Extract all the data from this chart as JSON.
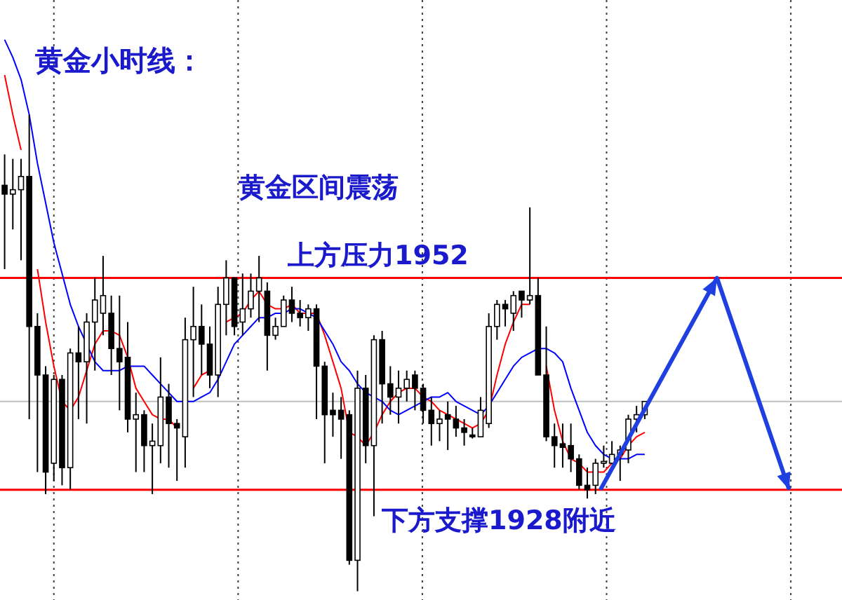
{
  "chart_data": {
    "type": "candlestick",
    "title": "黄金小时线：",
    "annotations": [
      "黄金区间震荡"
    ],
    "categories": [
      null,
      null,
      null,
      null,
      null,
      null,
      null,
      null,
      null,
      null,
      null,
      null,
      null,
      null,
      null,
      null,
      null,
      null,
      null,
      null,
      null,
      null,
      null,
      null,
      null,
      null,
      null,
      null,
      null,
      null,
      null,
      null,
      null,
      null,
      null,
      null,
      null,
      null,
      null,
      null,
      null,
      null,
      null,
      null,
      null,
      null,
      null,
      null,
      null,
      null,
      null,
      null,
      null,
      null,
      null,
      null,
      null,
      null,
      null,
      null,
      null,
      null,
      null,
      null,
      null,
      null,
      null,
      null,
      null,
      null,
      null,
      null,
      null,
      null,
      null,
      null,
      null,
      null,
      null
    ],
    "ohlc": [
      [
        1962.5,
        1966,
        1953,
        1961.5
      ],
      [
        1961.5,
        1965.5,
        1957.5,
        1962
      ],
      [
        1962,
        1965.5,
        1954,
        1963.5
      ],
      [
        1963.5,
        1970.5,
        1936,
        1946.5
      ],
      [
        1946.5,
        1948,
        1930,
        1941
      ],
      [
        1941,
        1942,
        1927.5,
        1930
      ],
      [
        1931,
        1941,
        1929,
        1940.5
      ],
      [
        1940.5,
        1941,
        1928.5,
        1930.5
      ],
      [
        1930.5,
        1944,
        1928,
        1943.5
      ],
      [
        1943.5,
        1946.5,
        1936,
        1942.5
      ],
      [
        1942.5,
        1948,
        1935.5,
        1947
      ],
      [
        1947,
        1952,
        1941.5,
        1949.5
      ],
      [
        1948,
        1954.5,
        1945.5,
        1950
      ],
      [
        1948,
        1950,
        1941,
        1944
      ],
      [
        1944,
        1950,
        1937,
        1942.5
      ],
      [
        1943,
        1947,
        1934.5,
        1936
      ],
      [
        1936,
        1939,
        1930,
        1936.5
      ],
      [
        1936.5,
        1937,
        1930,
        1933
      ],
      [
        1933,
        1935.5,
        1927.5,
        1933.5
      ],
      [
        1933,
        1943,
        1931,
        1938.5
      ],
      [
        1938.5,
        1940,
        1930.5,
        1935.5
      ],
      [
        1935.5,
        1936,
        1929,
        1935
      ],
      [
        1934,
        1947.5,
        1930.5,
        1945
      ],
      [
        1945,
        1951,
        1938.5,
        1946.5
      ],
      [
        1946.5,
        1949,
        1941,
        1944.5
      ],
      [
        1944.5,
        1946.5,
        1939.5,
        1941
      ],
      [
        1941,
        1951,
        1938.5,
        1949
      ],
      [
        1949,
        1954,
        1945.5,
        1952
      ],
      [
        1952,
        1952,
        1945.5,
        1946.5
      ],
      [
        1947,
        1952.5,
        1945.5,
        1948.5
      ],
      [
        1948.5,
        1952.5,
        1947.5,
        1950.5
      ],
      [
        1950.5,
        1954.5,
        1947,
        1952
      ],
      [
        1950.5,
        1951.5,
        1941.5,
        1945.5
      ],
      [
        1945.5,
        1947.5,
        1945,
        1946.5
      ],
      [
        1946.5,
        1950,
        1946.5,
        1949.5
      ],
      [
        1949.5,
        1951,
        1947,
        1948
      ],
      [
        1948,
        1949.5,
        1946.5,
        1947.5
      ],
      [
        1947.5,
        1949,
        1946,
        1948.5
      ],
      [
        1948.5,
        1949,
        1936,
        1942
      ],
      [
        1942,
        1942.5,
        1931,
        1936.5
      ],
      [
        1937,
        1939,
        1934,
        1936.5
      ],
      [
        1937,
        1938.5,
        1931.5,
        1936
      ],
      [
        1936.5,
        1937,
        1919.5,
        1920
      ],
      [
        1920,
        1941.5,
        1916.5,
        1939.5
      ],
      [
        1939.5,
        1941,
        1931,
        1933
      ],
      [
        1933,
        1945.5,
        1925,
        1945
      ],
      [
        1945,
        1946,
        1935.5,
        1940
      ],
      [
        1940,
        1942,
        1936.5,
        1938.5
      ],
      [
        1938.5,
        1941.5,
        1935.5,
        1939.5
      ],
      [
        1939.5,
        1941.5,
        1938,
        1940.5
      ],
      [
        1941,
        1941.5,
        1937,
        1939.5
      ],
      [
        1939.5,
        1940,
        1935.5,
        1937
      ],
      [
        1937,
        1938.5,
        1933,
        1935.5
      ],
      [
        1935.5,
        1937,
        1933.5,
        1936
      ],
      [
        1936.5,
        1938,
        1932.5,
        1936
      ],
      [
        1936,
        1937.5,
        1934,
        1935
      ],
      [
        1935,
        1936,
        1933,
        1934.5
      ],
      [
        1934.2,
        1935,
        1933.8,
        1934
      ],
      [
        1934,
        1938.5,
        1934,
        1937
      ],
      [
        1935.5,
        1948,
        1935,
        1946.5
      ],
      [
        1946.5,
        1949.5,
        1945,
        1949
      ],
      [
        1949,
        1949.5,
        1946.5,
        1948.5
      ],
      [
        1948,
        1950.5,
        1946,
        1950
      ],
      [
        1950.5,
        1950.5,
        1947.5,
        1949.5
      ],
      [
        1949.5,
        1960,
        1949,
        1950
      ],
      [
        1950,
        1952,
        1941,
        1941
      ],
      [
        1941,
        1946.5,
        1933.5,
        1934
      ],
      [
        1934,
        1935.5,
        1930.5,
        1933
      ],
      [
        1933.2,
        1935.5,
        1930.5,
        1932.8
      ],
      [
        1933,
        1935.5,
        1930,
        1931.5
      ],
      [
        1931.5,
        1932,
        1928,
        1928.5
      ],
      [
        1928.5,
        1930.5,
        1927,
        1928
      ],
      [
        1928.5,
        1931.5,
        1927.5,
        1931
      ],
      [
        1931,
        1933,
        1930.5,
        1931.2
      ],
      [
        1931,
        1933.5,
        1931,
        1932
      ],
      [
        1932,
        1933,
        1929,
        1932.5
      ],
      [
        1932.5,
        1936.5,
        1931,
        1936
      ],
      [
        1936,
        1937.5,
        1934.5,
        1936.5
      ],
      [
        1936.5,
        1938,
        1936,
        1938
      ]
    ],
    "series": [
      {
        "type": "line",
        "color": "#ff0000",
        "values": [
          1975,
          1970.5,
          1966.5,
          null,
          1953,
          1947,
          1942,
          1938,
          1937,
          1938.5,
          1941.5,
          1944.5,
          1946,
          1946,
          1945.5,
          1943,
          1939.5,
          1938,
          1936.5,
          1936,
          1936,
          1935,
          null,
          1939.5,
          1941,
          1941.5,
          null,
          1947,
          1947.5,
          1948,
          1949.5,
          1950.5,
          1949,
          1948.5,
          1948.5,
          1949,
          1948,
          1948,
          1948,
          1945.5,
          1942.5,
          1939.5,
          1934.5,
          1934,
          1933,
          1934.5,
          1936.5,
          1938,
          1939,
          1939.5,
          1939.5,
          1938.5,
          1938,
          1937,
          1936.5,
          1936,
          1935.5,
          1935,
          1935.5,
          1937,
          1941,
          1944.5,
          1947,
          1949,
          1949,
          null,
          1942,
          1937,
          1933.5,
          1931.5,
          1931,
          1930,
          1930,
          1930,
          1931,
          1931.5,
          1933,
          1934,
          1934.5
        ]
      },
      {
        "type": "line",
        "color": "#0000ff",
        "values": [
          1979,
          1977,
          1974.5,
          1970.5,
          1965,
          1960.5,
          1956,
          1952.5,
          1949,
          1946.5,
          1944.5,
          1942.5,
          1941.5,
          1941.5,
          1941.5,
          1942,
          1942,
          1942,
          1941,
          1940,
          1939,
          1938,
          1938,
          1938,
          1938.5,
          1939,
          1940.5,
          1942.5,
          1944.5,
          1945.5,
          1946.5,
          1947.5,
          1947.5,
          1948,
          1948,
          1948.5,
          1948.5,
          1948,
          1947.5,
          1946,
          1944.5,
          1942.5,
          1941.5,
          1940,
          1939,
          1938.5,
          1938,
          1937,
          1936.5,
          1937,
          1937.5,
          1938,
          1938.5,
          1938.5,
          1939,
          1938,
          1937.5,
          1937,
          1936.5,
          1937.5,
          1939,
          1940.5,
          1942,
          1943,
          1943.5,
          1944,
          1944,
          1943.5,
          1942.5,
          1939.5,
          1937,
          1934.5,
          1933,
          1932,
          1931.5,
          1931.5,
          1931.5,
          1932,
          1932
        ]
      }
    ],
    "ref_lines": [
      {
        "axis": "y",
        "value": 1952,
        "label": "上方压力1952",
        "color": "#ff0000"
      },
      {
        "axis": "y",
        "value": 1928,
        "label": "下方支撑1928附近",
        "color": "#ff0000"
      },
      {
        "axis": "y",
        "value": 1938,
        "color": "#c0c0c0"
      }
    ],
    "ylim": [
      1915.5,
      1983.5
    ],
    "tick_labels": false,
    "grid": "x"
  }
}
